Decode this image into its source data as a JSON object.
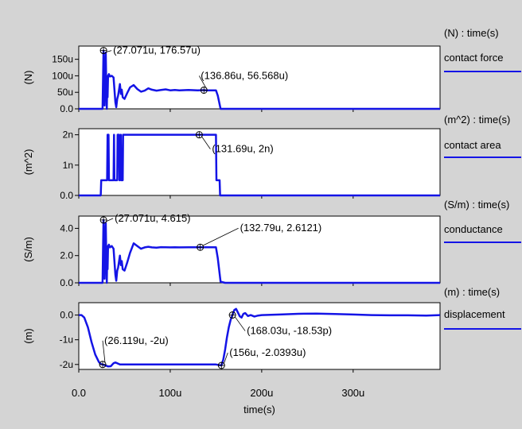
{
  "x_axis": {
    "label": "time(s)",
    "tick_values": [
      0,
      100,
      200,
      300
    ],
    "tick_labels": [
      "0.0",
      "100u",
      "200u",
      "300u"
    ],
    "range_us": [
      0,
      395
    ]
  },
  "chart_data": [
    {
      "type": "line",
      "ylabel": "(N)",
      "legend": {
        "header": "(N) : time(s)",
        "name": "contact force"
      },
      "ylim": [
        0,
        190
      ],
      "yticks": [
        {
          "v": 0,
          "label": "0.0"
        },
        {
          "v": 50,
          "label": "50u"
        },
        {
          "v": 100,
          "label": "100u"
        },
        {
          "v": 150,
          "label": "150u"
        }
      ],
      "series": [
        {
          "name": "contact force",
          "color": "#1414e6",
          "x": [
            0,
            26,
            26.5,
            27.07,
            27.6,
            28.2,
            28.8,
            29.5,
            30,
            30.6,
            31,
            31.5,
            32,
            33,
            34,
            36,
            38,
            40,
            41,
            42,
            43,
            45,
            46,
            47,
            48,
            50,
            53,
            56,
            60,
            64,
            68,
            72,
            76,
            80,
            85,
            90,
            95,
            100,
            105,
            110,
            120,
            130,
            136.86,
            140,
            145,
            150,
            152,
            155,
            160,
            170,
            200,
            250,
            300,
            350,
            395
          ],
          "y": [
            0,
            0,
            90,
            176.57,
            60,
            10,
            120,
            170,
            80,
            0,
            50,
            35,
            100,
            105,
            98,
            100,
            95,
            20,
            5,
            30,
            40,
            75,
            45,
            58,
            35,
            30,
            48,
            65,
            72,
            60,
            52,
            55,
            62,
            58,
            55,
            57,
            59,
            56,
            57,
            56,
            57,
            56,
            56.568,
            56,
            56,
            56,
            40,
            0,
            0,
            0,
            0,
            0,
            0,
            0,
            0
          ]
        }
      ],
      "annotations": [
        {
          "label": "(27.071u, 176.57u)",
          "x": 27.071,
          "y": 176.57
        },
        {
          "label": "(136.86u, 56.568u)",
          "x": 136.86,
          "y": 56.568
        }
      ]
    },
    {
      "type": "line",
      "ylabel": "(m^2)",
      "legend": {
        "header": "(m^2) : time(s)",
        "name": "contact area"
      },
      "ylim": [
        0,
        2.2
      ],
      "yticks": [
        {
          "v": 0,
          "label": "0.0"
        },
        {
          "v": 1,
          "label": "1n"
        },
        {
          "v": 2,
          "label": "2n"
        }
      ],
      "series": [
        {
          "name": "contact area",
          "color": "#1414e6",
          "x": [
            0,
            24,
            24.5,
            31,
            31.5,
            32.5,
            33,
            38,
            38.5,
            39,
            42,
            42.5,
            43,
            44,
            44.5,
            45,
            46,
            46.5,
            48,
            48.5,
            150,
            150.5,
            154,
            154.5,
            395
          ],
          "y": [
            0,
            0,
            0.5,
            0.5,
            2,
            2,
            0.5,
            0.5,
            2,
            0.5,
            0.5,
            2,
            2,
            2,
            0.5,
            0.5,
            2,
            0.5,
            0.5,
            2,
            2,
            0.5,
            0.5,
            0,
            0
          ]
        }
      ],
      "annotations": [
        {
          "label": "(131.69u, 2n)",
          "x": 131.69,
          "y": 2
        }
      ]
    },
    {
      "type": "line",
      "ylabel": "(S/m)",
      "legend": {
        "header": "(S/m) : time(s)",
        "name": "conductance"
      },
      "ylim": [
        0,
        4.9
      ],
      "yticks": [
        {
          "v": 0,
          "label": "0.0"
        },
        {
          "v": 2,
          "label": "2.0"
        },
        {
          "v": 4,
          "label": "4.0"
        }
      ],
      "series": [
        {
          "name": "conductance",
          "color": "#1414e6",
          "x": [
            0,
            26,
            26.5,
            27.07,
            27.6,
            28.2,
            28.8,
            29.5,
            30,
            30.6,
            31,
            31.5,
            32,
            33,
            34,
            36,
            38,
            40,
            41,
            42,
            43,
            45,
            46,
            47,
            48,
            50,
            53,
            56,
            60,
            64,
            68,
            72,
            76,
            80,
            85,
            90,
            95,
            100,
            105,
            110,
            120,
            130,
            132.79,
            140,
            145,
            150,
            152,
            155,
            160,
            170,
            200,
            250,
            300,
            350,
            395
          ],
          "y": [
            0,
            0,
            2.5,
            4.615,
            1.6,
            0.3,
            3.2,
            4.4,
            2.2,
            0,
            1.4,
            1,
            2.7,
            2.8,
            2.6,
            2.7,
            2.5,
            0.6,
            0.15,
            0.9,
            1.1,
            2.0,
            1.3,
            1.6,
            1.0,
            0.9,
            1.5,
            2.2,
            2.9,
            2.7,
            2.5,
            2.6,
            2.65,
            2.6,
            2.58,
            2.62,
            2.61,
            2.6,
            2.61,
            2.6,
            2.61,
            2.61,
            2.6121,
            2.61,
            2.61,
            2.61,
            1.8,
            0.08,
            0,
            0,
            0,
            0,
            0,
            0,
            0
          ]
        }
      ],
      "annotations": [
        {
          "label": "(27.071u, 4.615)",
          "x": 27.071,
          "y": 4.615
        },
        {
          "label": "(132.79u, 2.6121)",
          "x": 132.79,
          "y": 2.6121
        }
      ]
    },
    {
      "type": "line",
      "ylabel": "(m)",
      "legend": {
        "header": "(m) : time(s)",
        "name": "displacement"
      },
      "ylim": [
        -2.2,
        0.5
      ],
      "yticks": [
        {
          "v": -2,
          "label": "-2u"
        },
        {
          "v": -1,
          "label": "-1u"
        },
        {
          "v": 0,
          "label": "0.0"
        }
      ],
      "series": [
        {
          "name": "displacement",
          "color": "#1414e6",
          "x": [
            0,
            3,
            6,
            10,
            14,
            18,
            22,
            24,
            26.119,
            28,
            30,
            32,
            35,
            38,
            40,
            42,
            45,
            50,
            60,
            80,
            100,
            120,
            140,
            150,
            156,
            158,
            160,
            162,
            164,
            166,
            168.03,
            170,
            172,
            174,
            176,
            178,
            180,
            182,
            185,
            188,
            192,
            196,
            200,
            220,
            240,
            260,
            280,
            300,
            320,
            340,
            360,
            380,
            395
          ],
          "y": [
            0,
            0,
            -0.1,
            -0.5,
            -1.1,
            -1.6,
            -1.9,
            -1.98,
            -2,
            -2.02,
            -2.05,
            -2.08,
            -2.07,
            -1.95,
            -1.92,
            -1.95,
            -2.0,
            -2.0,
            -2.0,
            -2.0,
            -2.0,
            -2.0,
            -2.0,
            -2.0,
            -2.0393,
            -1.8,
            -1.4,
            -0.9,
            -0.5,
            -0.2,
            0,
            0.2,
            0.25,
            0.1,
            -0.05,
            -0.1,
            0.05,
            0.08,
            -0.04,
            0,
            -0.06,
            -0.02,
            0,
            0.02,
            0.05,
            0.06,
            0.04,
            0.02,
            0.0,
            -0.01,
            -0.01,
            -0.02,
            0
          ]
        }
      ],
      "annotations": [
        {
          "label": "(26.119u, -2u)",
          "x": 26.119,
          "y": -2
        },
        {
          "label": "(168.03u, -18.53p)",
          "x": 168.03,
          "y": 0
        },
        {
          "label": "(156u, -2.0393u)",
          "x": 156,
          "y": -2.0393
        }
      ]
    }
  ]
}
